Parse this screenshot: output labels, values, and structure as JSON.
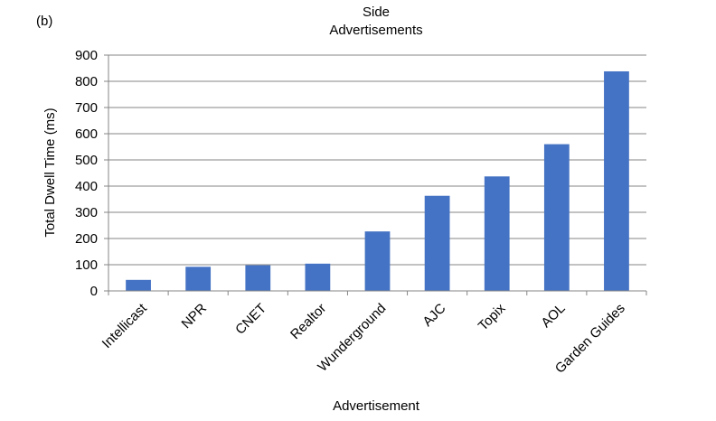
{
  "panel_label": "(b)",
  "chart_data": {
    "type": "bar",
    "title": "Side\nAdvertisements",
    "title_lines": [
      "Side",
      "Advertisements"
    ],
    "xlabel": "Advertisement",
    "ylabel": "Total Dwell Time (ms)",
    "categories": [
      "Intellicast",
      "NPR",
      "CNET",
      "Realtor",
      "Wunderground",
      "AJC",
      "Topix",
      "AOL",
      "Garden Guides"
    ],
    "values": [
      42,
      92,
      98,
      104,
      227,
      363,
      437,
      560,
      838
    ],
    "ylim": [
      0,
      900
    ],
    "yticks": [
      0,
      100,
      200,
      300,
      400,
      500,
      600,
      700,
      800,
      900
    ],
    "grid": true,
    "legend": "none",
    "bar_color": "#4472c4"
  }
}
